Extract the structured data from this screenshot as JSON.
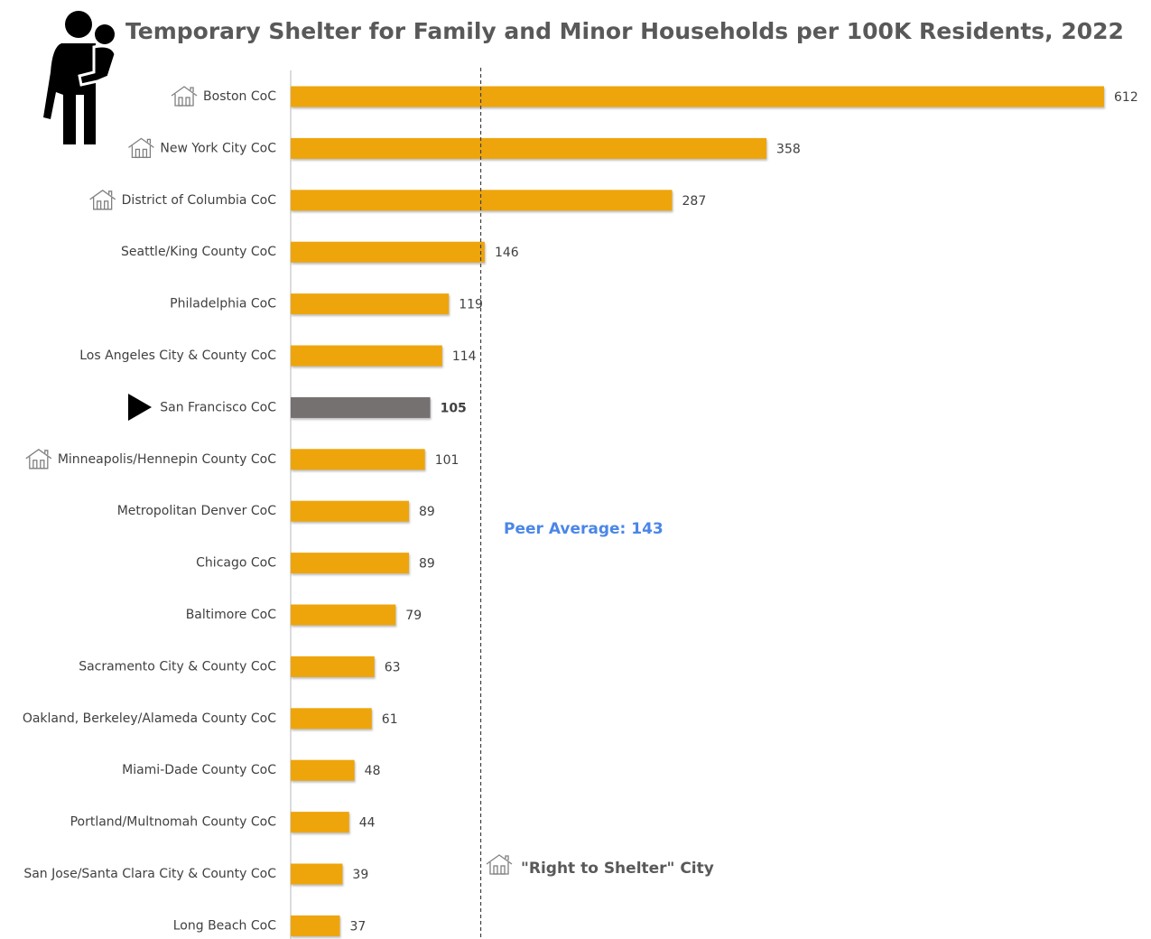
{
  "chart_data": {
    "type": "bar",
    "orientation": "horizontal",
    "title": "Temporary Shelter for Family and Minor Households per 100K Residents, 2022",
    "categories": [
      "Boston CoC",
      "New York City CoC",
      "District of Columbia CoC",
      "Seattle/King County CoC",
      "Philadelphia CoC",
      "Los Angeles City & County CoC",
      "San Francisco CoC",
      "Minneapolis/Hennepin County CoC",
      "Metropolitan Denver CoC",
      "Chicago CoC",
      "Baltimore CoC",
      "Sacramento City & County CoC",
      "Oakland, Berkeley/Alameda County CoC",
      "Miami-Dade County CoC",
      "Portland/Multnomah County CoC",
      "San Jose/Santa Clara City & County CoC",
      "Long Beach CoC"
    ],
    "values": [
      612,
      358,
      287,
      146,
      119,
      114,
      105,
      101,
      89,
      89,
      79,
      63,
      61,
      48,
      44,
      39,
      37
    ],
    "colors": [
      "#eea50c",
      "#eea50c",
      "#eea50c",
      "#eea50c",
      "#eea50c",
      "#eea50c",
      "#767171",
      "#eea50c",
      "#eea50c",
      "#eea50c",
      "#eea50c",
      "#eea50c",
      "#eea50c",
      "#eea50c",
      "#eea50c",
      "#eea50c",
      "#eea50c"
    ],
    "right_to_shelter": [
      true,
      true,
      true,
      false,
      false,
      false,
      false,
      true,
      false,
      false,
      false,
      false,
      false,
      false,
      false,
      false,
      false
    ],
    "xlim": [
      0,
      612
    ],
    "peer_average": {
      "value": 143,
      "label": "Peer Average: 143"
    },
    "legend": "\"Right to Shelter\" City"
  }
}
